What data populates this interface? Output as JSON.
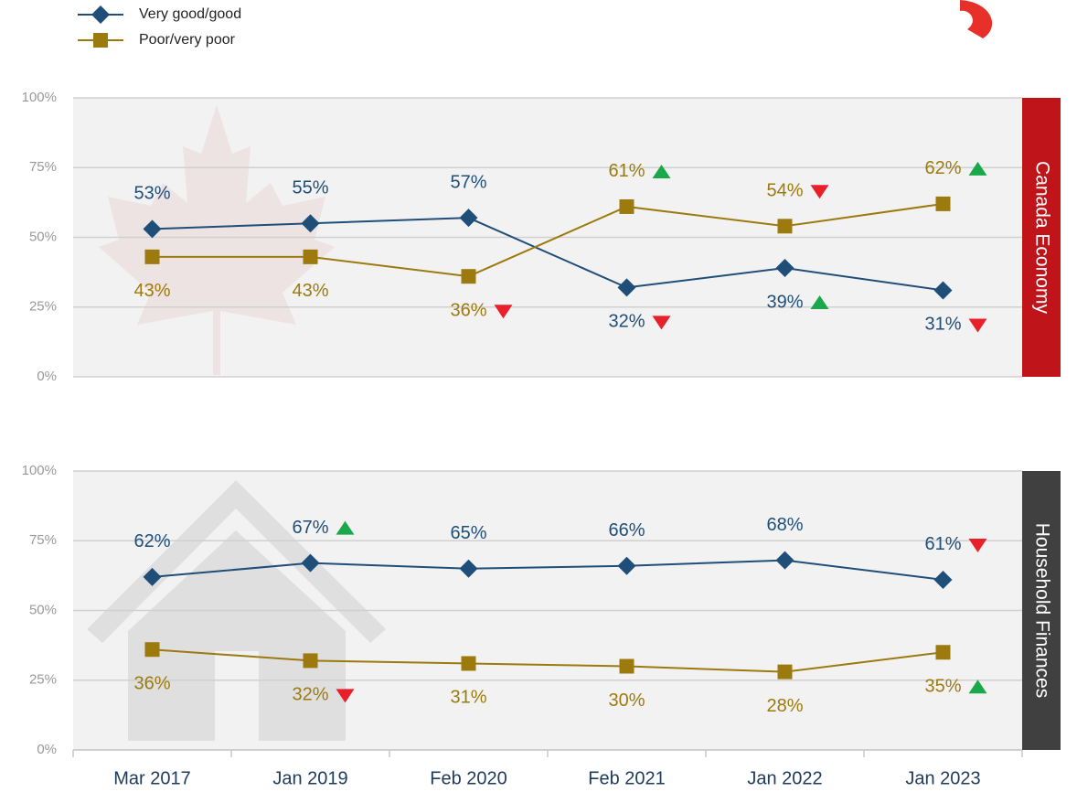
{
  "legend": [
    "Very good/good",
    "Poor/very poor"
  ],
  "categories": [
    "Mar 2017",
    "Jan 2019",
    "Feb 2020",
    "Feb 2021",
    "Jan 2022",
    "Jan 2023"
  ],
  "chart_data": [
    {
      "type": "line",
      "panel_label": "Canada Economy",
      "panel_color": "#c0141b",
      "ylim": [
        0,
        100
      ],
      "yticks": [
        {
          "value": 0,
          "label": "0%"
        },
        {
          "value": 25,
          "label": "25%"
        },
        {
          "value": 50,
          "label": "50%"
        },
        {
          "value": 75,
          "label": "75%"
        },
        {
          "value": 100,
          "label": "100%"
        }
      ],
      "grid": true,
      "series": [
        {
          "name": "Very good/good",
          "color": "#1f4e79",
          "marker": "diamond",
          "values": [
            53,
            55,
            57,
            32,
            39,
            31
          ],
          "value_labels": [
            "53%",
            "55%",
            "57%",
            "32%",
            "39%",
            "31%"
          ],
          "trends": [
            null,
            null,
            null,
            "down",
            "up",
            "down"
          ]
        },
        {
          "name": "Poor/very poor",
          "color": "#9c7a0e",
          "marker": "square",
          "values": [
            43,
            43,
            36,
            61,
            54,
            62
          ],
          "value_labels": [
            "43%",
            "43%",
            "36%",
            "61%",
            "54%",
            "62%"
          ],
          "trends": [
            null,
            null,
            "down",
            "up",
            "down",
            "up"
          ]
        }
      ]
    },
    {
      "type": "line",
      "panel_label": "Household Finances",
      "panel_color": "#404040",
      "ylim": [
        0,
        100
      ],
      "yticks": [
        {
          "value": 0,
          "label": "0%"
        },
        {
          "value": 25,
          "label": "25%"
        },
        {
          "value": 50,
          "label": "50%"
        },
        {
          "value": 75,
          "label": "75%"
        },
        {
          "value": 100,
          "label": "100%"
        }
      ],
      "grid": true,
      "series": [
        {
          "name": "Very good/good",
          "color": "#1f4e79",
          "marker": "diamond",
          "values": [
            62,
            67,
            65,
            66,
            68,
            61
          ],
          "value_labels": [
            "62%",
            "67%",
            "65%",
            "66%",
            "68%",
            "61%"
          ],
          "trends": [
            null,
            "up",
            null,
            null,
            null,
            "down"
          ]
        },
        {
          "name": "Poor/very poor",
          "color": "#9c7a0e",
          "marker": "square",
          "values": [
            36,
            32,
            31,
            30,
            28,
            35
          ],
          "value_labels": [
            "36%",
            "32%",
            "31%",
            "30%",
            "28%",
            "35%"
          ],
          "trends": [
            null,
            "down",
            null,
            null,
            null,
            "up"
          ]
        }
      ]
    }
  ]
}
